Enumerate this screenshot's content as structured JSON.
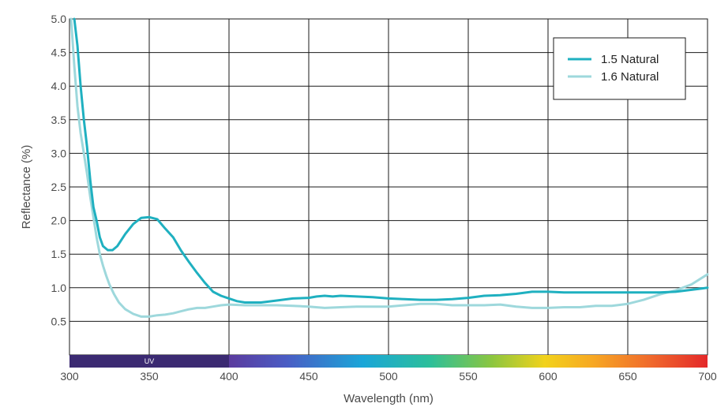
{
  "chart_data": {
    "type": "line",
    "title": "",
    "xlabel": "Wavelength (nm)",
    "ylabel": "Reflectance (%)",
    "xlim": [
      300,
      700
    ],
    "ylim": [
      0,
      5.0
    ],
    "x_ticks": [
      300,
      350,
      400,
      450,
      500,
      550,
      600,
      650,
      700
    ],
    "y_ticks": [
      0.5,
      1.0,
      1.5,
      2.0,
      2.5,
      3.0,
      3.5,
      4.0,
      4.5,
      5.0
    ],
    "x_tick_labels": [
      "300",
      "350",
      "400",
      "450",
      "500",
      "550",
      "600",
      "650",
      "700"
    ],
    "y_tick_labels": [
      "0.5",
      "1.0",
      "1.5",
      "2.0",
      "2.5",
      "3.0",
      "3.5",
      "4.0",
      "4.5",
      "5.0"
    ],
    "grid": true,
    "legend_position": "top-right",
    "band": {
      "label": "UV",
      "uv_range": [
        300,
        400
      ],
      "uv_color": "#3b2a72",
      "visible_range": [
        400,
        700
      ]
    },
    "series": [
      {
        "name": "1.5 Natural",
        "color": "#1fb0c0",
        "points": [
          [
            303,
            5.0
          ],
          [
            305,
            4.6
          ],
          [
            307,
            4.0
          ],
          [
            309,
            3.5
          ],
          [
            311,
            3.1
          ],
          [
            313,
            2.6
          ],
          [
            315,
            2.2
          ],
          [
            317,
            2.0
          ],
          [
            319,
            1.75
          ],
          [
            321,
            1.62
          ],
          [
            324,
            1.56
          ],
          [
            327,
            1.56
          ],
          [
            330,
            1.62
          ],
          [
            335,
            1.8
          ],
          [
            340,
            1.95
          ],
          [
            345,
            2.04
          ],
          [
            350,
            2.05
          ],
          [
            355,
            2.02
          ],
          [
            360,
            1.88
          ],
          [
            365,
            1.75
          ],
          [
            370,
            1.55
          ],
          [
            375,
            1.38
          ],
          [
            380,
            1.22
          ],
          [
            385,
            1.07
          ],
          [
            390,
            0.94
          ],
          [
            395,
            0.88
          ],
          [
            400,
            0.84
          ],
          [
            405,
            0.8
          ],
          [
            410,
            0.78
          ],
          [
            420,
            0.78
          ],
          [
            430,
            0.81
          ],
          [
            440,
            0.84
          ],
          [
            450,
            0.85
          ],
          [
            455,
            0.87
          ],
          [
            460,
            0.88
          ],
          [
            465,
            0.87
          ],
          [
            470,
            0.88
          ],
          [
            480,
            0.87
          ],
          [
            490,
            0.86
          ],
          [
            500,
            0.84
          ],
          [
            510,
            0.83
          ],
          [
            520,
            0.82
          ],
          [
            530,
            0.82
          ],
          [
            540,
            0.83
          ],
          [
            550,
            0.85
          ],
          [
            560,
            0.88
          ],
          [
            570,
            0.89
          ],
          [
            580,
            0.91
          ],
          [
            590,
            0.94
          ],
          [
            600,
            0.94
          ],
          [
            610,
            0.93
          ],
          [
            620,
            0.93
          ],
          [
            630,
            0.93
          ],
          [
            640,
            0.93
          ],
          [
            650,
            0.93
          ],
          [
            660,
            0.93
          ],
          [
            670,
            0.93
          ],
          [
            680,
            0.94
          ],
          [
            690,
            0.97
          ],
          [
            700,
            1.0
          ]
        ]
      },
      {
        "name": "1.6 Natural",
        "color": "#9ed8dc",
        "points": [
          [
            301,
            5.0
          ],
          [
            303,
            4.3
          ],
          [
            305,
            3.7
          ],
          [
            307,
            3.3
          ],
          [
            309,
            3.0
          ],
          [
            311,
            2.7
          ],
          [
            313,
            2.35
          ],
          [
            315,
            2.05
          ],
          [
            317,
            1.75
          ],
          [
            319,
            1.5
          ],
          [
            321,
            1.33
          ],
          [
            323,
            1.18
          ],
          [
            325,
            1.05
          ],
          [
            328,
            0.9
          ],
          [
            331,
            0.78
          ],
          [
            335,
            0.68
          ],
          [
            340,
            0.61
          ],
          [
            345,
            0.57
          ],
          [
            350,
            0.57
          ],
          [
            355,
            0.59
          ],
          [
            360,
            0.6
          ],
          [
            365,
            0.62
          ],
          [
            370,
            0.65
          ],
          [
            375,
            0.68
          ],
          [
            380,
            0.7
          ],
          [
            385,
            0.7
          ],
          [
            390,
            0.72
          ],
          [
            395,
            0.74
          ],
          [
            400,
            0.75
          ],
          [
            410,
            0.74
          ],
          [
            420,
            0.74
          ],
          [
            430,
            0.74
          ],
          [
            440,
            0.73
          ],
          [
            450,
            0.72
          ],
          [
            460,
            0.7
          ],
          [
            470,
            0.71
          ],
          [
            480,
            0.72
          ],
          [
            490,
            0.72
          ],
          [
            500,
            0.72
          ],
          [
            510,
            0.74
          ],
          [
            520,
            0.76
          ],
          [
            530,
            0.76
          ],
          [
            540,
            0.74
          ],
          [
            550,
            0.74
          ],
          [
            560,
            0.74
          ],
          [
            570,
            0.75
          ],
          [
            580,
            0.72
          ],
          [
            590,
            0.7
          ],
          [
            600,
            0.7
          ],
          [
            610,
            0.71
          ],
          [
            620,
            0.71
          ],
          [
            630,
            0.73
          ],
          [
            640,
            0.73
          ],
          [
            650,
            0.76
          ],
          [
            660,
            0.82
          ],
          [
            670,
            0.9
          ],
          [
            680,
            0.96
          ],
          [
            690,
            1.05
          ],
          [
            700,
            1.2
          ]
        ]
      }
    ]
  }
}
